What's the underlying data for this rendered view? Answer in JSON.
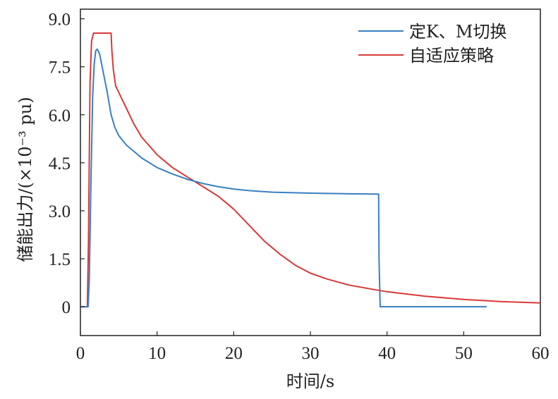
{
  "chart_data": {
    "type": "line",
    "xlabel": "时间/s",
    "ylabel": "储能出力/(×10⁻³ pu)",
    "xlim": [
      0,
      60
    ],
    "ylim": [
      -0.9,
      9.3
    ],
    "x_ticks": [
      "0",
      "10",
      "20",
      "30",
      "40",
      "50",
      "60"
    ],
    "y_ticks": [
      "0",
      "1.5",
      "3.0",
      "4.5",
      "6.0",
      "7.5",
      "9.0"
    ],
    "x_tick_values": [
      0,
      10,
      20,
      30,
      40,
      50,
      60
    ],
    "y_tick_values": [
      0,
      1.5,
      3.0,
      4.5,
      6.0,
      7.5,
      9.0
    ],
    "grid": false,
    "legend_position": "top-right",
    "series": [
      {
        "name": "定K、M切换",
        "color": "#3a7fc1",
        "x": [
          0,
          1,
          1.15,
          1.4,
          1.6,
          1.8,
          2.0,
          2.2,
          2.5,
          3.0,
          3.5,
          4.0,
          4.5,
          4.8,
          5,
          6,
          7,
          8,
          10,
          12,
          14,
          16,
          18,
          20,
          22,
          25,
          30,
          35,
          38.9,
          38.95,
          39.1,
          40,
          45,
          50,
          53
        ],
        "values": [
          0,
          0,
          0.8,
          4.2,
          6.6,
          7.6,
          8.0,
          8.05,
          7.9,
          7.3,
          6.7,
          6.0,
          5.6,
          5.45,
          5.35,
          5.05,
          4.85,
          4.65,
          4.35,
          4.15,
          3.98,
          3.85,
          3.75,
          3.68,
          3.63,
          3.58,
          3.55,
          3.53,
          3.52,
          1.5,
          0,
          0,
          0,
          0,
          0
        ]
      },
      {
        "name": "自适应策略",
        "color": "#d83a3a",
        "x": [
          0,
          0.9,
          1.05,
          1.25,
          1.45,
          1.7,
          4.0,
          4.1,
          4.3,
          4.6,
          5,
          6,
          7,
          8,
          10,
          12,
          14,
          16,
          18,
          20,
          22,
          24,
          26,
          28,
          30,
          32,
          35,
          38,
          40,
          45,
          50,
          55,
          60
        ],
        "values": [
          0,
          0,
          2.0,
          7.0,
          8.3,
          8.55,
          8.55,
          8.0,
          7.4,
          6.9,
          6.7,
          6.2,
          5.7,
          5.3,
          4.75,
          4.35,
          4.05,
          3.75,
          3.45,
          3.05,
          2.55,
          2.05,
          1.65,
          1.3,
          1.05,
          0.88,
          0.68,
          0.55,
          0.47,
          0.33,
          0.23,
          0.16,
          0.12
        ]
      }
    ]
  }
}
